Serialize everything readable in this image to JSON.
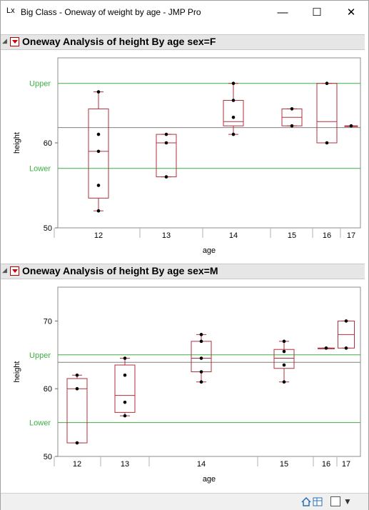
{
  "window": {
    "title": "Big Class - Oneway of weight by age - JMP Pro",
    "app_icon": "Lx",
    "minimize": "—",
    "maximize": "☐",
    "close": "✕"
  },
  "reports": [
    {
      "title": "Oneway Analysis of height By age sex=F",
      "y_label": "height",
      "x_label": "age",
      "y_ticks": [
        "50",
        "60"
      ],
      "x_ticks": [
        "12",
        "13",
        "14",
        "15",
        "16",
        "17"
      ],
      "upper_label": "Upper",
      "lower_label": "Lower"
    },
    {
      "title": "Oneway Analysis of height By age sex=M",
      "y_label": "height",
      "x_label": "age",
      "y_ticks": [
        "50",
        "60",
        "70"
      ],
      "x_ticks": [
        "12",
        "13",
        "14",
        "15",
        "16",
        "17"
      ],
      "upper_label": "Upper",
      "lower_label": "Lower"
    }
  ],
  "chart_data": [
    {
      "type": "scatter",
      "title": "Oneway Analysis of height By age sex=F",
      "xlabel": "age",
      "ylabel": "height",
      "ylim": [
        50,
        70
      ],
      "categories": [
        "12",
        "13",
        "14",
        "15",
        "16",
        "17"
      ],
      "reference_lines": {
        "upper": 67,
        "mean": 61.8,
        "lower": 57
      },
      "points": {
        "12": [
          66,
          61,
          59,
          55,
          52
        ],
        "13": [
          61,
          60,
          56
        ],
        "14": [
          67,
          65,
          63,
          61
        ],
        "15": [
          64,
          62
        ],
        "16": [
          67,
          60
        ],
        "17": [
          62
        ]
      },
      "boxes": {
        "12": {
          "min": 52,
          "q1": 53.5,
          "median": 59,
          "q3": 64,
          "max": 66
        },
        "13": {
          "min": 56,
          "q1": 56,
          "median": 60,
          "q3": 61,
          "max": 61
        },
        "14": {
          "min": 61,
          "q1": 62,
          "median": 62.5,
          "q3": 65,
          "max": 67
        },
        "15": {
          "min": 62,
          "q1": 62,
          "median": 63,
          "q3": 64,
          "max": 64
        },
        "16": {
          "min": 60,
          "q1": 60,
          "median": 62.5,
          "q3": 67,
          "max": 67
        },
        "17": {
          "min": 62,
          "q1": 62,
          "median": 62,
          "q3": 62,
          "max": 62
        }
      },
      "colors": {
        "upper": "#3cb043",
        "lower": "#3cb043",
        "mean": "#7f7f7f",
        "box": "#b0303c",
        "point": "#000000"
      }
    },
    {
      "type": "scatter",
      "title": "Oneway Analysis of height By age sex=M",
      "xlabel": "age",
      "ylabel": "height",
      "ylim": [
        50,
        75
      ],
      "categories": [
        "12",
        "13",
        "14",
        "15",
        "16",
        "17"
      ],
      "reference_lines": {
        "upper": 65,
        "mean": 63.9,
        "lower": 55
      },
      "points": {
        "12": [
          62,
          60,
          52
        ],
        "13": [
          64.5,
          62,
          58,
          56
        ],
        "14": [
          68,
          67,
          64.5,
          62.5,
          61
        ],
        "15": [
          67,
          65.5,
          63.5,
          61
        ],
        "16": [
          66
        ],
        "17": [
          70,
          66
        ]
      },
      "boxes": {
        "12": {
          "min": 52,
          "q1": 52,
          "median": 60,
          "q3": 61.5,
          "max": 62
        },
        "13": {
          "min": 56,
          "q1": 56.5,
          "median": 59,
          "q3": 63.5,
          "max": 64.5
        },
        "14": {
          "min": 61,
          "q1": 62.5,
          "median": 64.5,
          "q3": 67,
          "max": 68
        },
        "15": {
          "min": 61,
          "q1": 63,
          "median": 64.5,
          "q3": 65.8,
          "max": 67
        },
        "16": {
          "min": 66,
          "q1": 66,
          "median": 66,
          "q3": 66,
          "max": 66
        },
        "17": {
          "min": 66,
          "q1": 66,
          "median": 68,
          "q3": 70,
          "max": 70
        }
      },
      "colors": {
        "upper": "#3cb043",
        "lower": "#3cb043",
        "mean": "#7f7f7f",
        "box": "#b0303c",
        "point": "#000000"
      }
    }
  ],
  "statusbar": {
    "home_icon": "home-icon",
    "table_icon": "table-icon",
    "box_icon": "checkbox-icon",
    "dropdown": "▼"
  }
}
